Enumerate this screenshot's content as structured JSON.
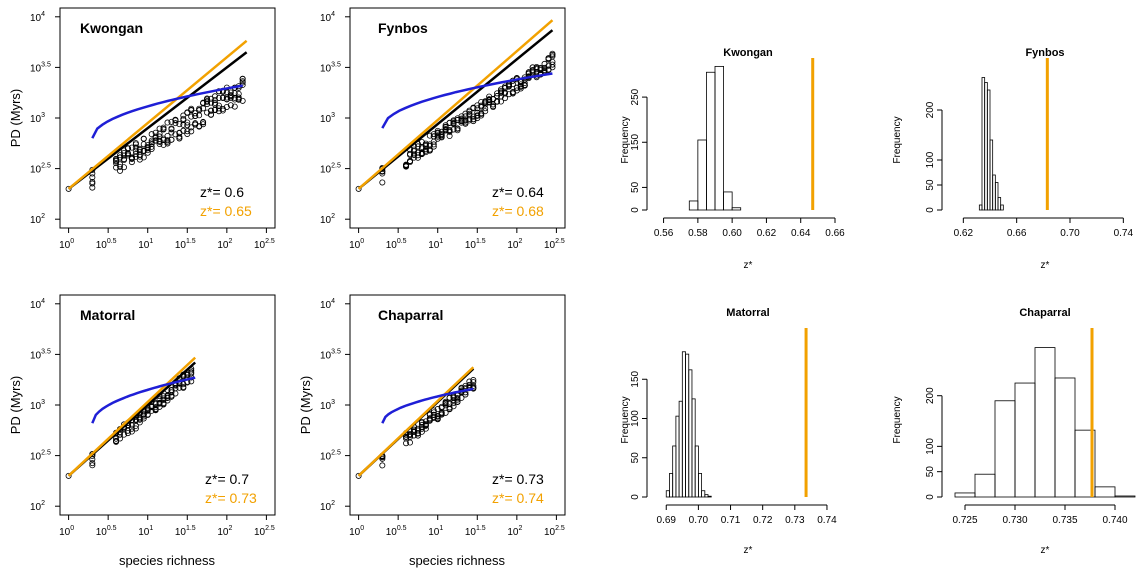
{
  "colors": {
    "black": "#000000",
    "orange": "#f2a100",
    "blue": "#1f1fd6"
  },
  "chart_data": [
    {
      "type": "scatter",
      "title": "Kwongan",
      "ylabel": "PD (Myrs)",
      "xlabel": "",
      "xscale": "log10",
      "yscale": "log10",
      "xlim": [
        0,
        2.5
      ],
      "ylim": [
        2,
        4
      ],
      "xticks": [
        "10^0",
        "10^0.5",
        "10^1",
        "10^1.5",
        "10^2",
        "10^2.5"
      ],
      "yticks": [
        "10^2",
        "10^2.5",
        "10^3",
        "10^3.5",
        "10^4"
      ],
      "annotations": [
        {
          "text": "z*= 0.6",
          "color": "black"
        },
        {
          "text": "z*= 0.65",
          "color": "orange"
        }
      ],
      "points": {
        "x_range": [
          0.0,
          2.2
        ],
        "y_low": [
          2.18,
          3.15
        ],
        "y_high": [
          2.3,
          3.35
        ],
        "spread": 0.17
      },
      "lines": [
        {
          "name": "black",
          "slope": 0.6,
          "intercept": 2.3,
          "x": [
            0.0,
            2.25
          ]
        },
        {
          "name": "orange",
          "slope": 0.65,
          "intercept": 2.3,
          "x": [
            0.0,
            2.25
          ]
        },
        {
          "name": "blue",
          "type": "curve",
          "x": [
            0.3,
            2.2
          ],
          "y": [
            2.8,
            3.32
          ]
        }
      ]
    },
    {
      "type": "scatter",
      "title": "Fynbos",
      "ylabel": "",
      "xlabel": "",
      "xscale": "log10",
      "yscale": "log10",
      "xlim": [
        0,
        2.5
      ],
      "ylim": [
        2,
        4
      ],
      "xticks": [
        "10^0",
        "10^0.5",
        "10^1",
        "10^1.5",
        "10^2",
        "10^2.5"
      ],
      "yticks": [
        "10^2",
        "10^2.5",
        "10^3",
        "10^3.5",
        "10^4"
      ],
      "annotations": [
        {
          "text": "z*= 0.64",
          "color": "black"
        },
        {
          "text": "z*= 0.68",
          "color": "orange"
        }
      ],
      "points": {
        "x_range": [
          0.0,
          2.45
        ],
        "y_low": [
          2.2,
          3.5
        ],
        "y_high": [
          2.3,
          3.58
        ],
        "spread": 0.16
      },
      "lines": [
        {
          "name": "black",
          "slope": 0.64,
          "intercept": 2.3,
          "x": [
            0.0,
            2.45
          ]
        },
        {
          "name": "orange",
          "slope": 0.68,
          "intercept": 2.3,
          "x": [
            0.0,
            2.45
          ]
        },
        {
          "name": "blue",
          "type": "curve",
          "x": [
            0.3,
            2.45
          ],
          "y": [
            2.9,
            3.44
          ]
        }
      ]
    },
    {
      "type": "scatter",
      "title": "Matorral",
      "ylabel": "PD (Myrs)",
      "xlabel": "species richness",
      "xscale": "log10",
      "yscale": "log10",
      "xlim": [
        0,
        2.5
      ],
      "ylim": [
        2,
        4
      ],
      "xticks": [
        "10^0",
        "10^0.5",
        "10^1",
        "10^1.5",
        "10^2",
        "10^2.5"
      ],
      "yticks": [
        "10^2",
        "10^2.5",
        "10^3",
        "10^3.5",
        "10^4"
      ],
      "annotations": [
        {
          "text": "z*= 0.7",
          "color": "black"
        },
        {
          "text": "z*= 0.73",
          "color": "orange"
        }
      ],
      "points": {
        "x_range": [
          0.0,
          1.58
        ],
        "y_low": [
          2.2,
          3.25
        ],
        "y_high": [
          2.3,
          3.33
        ],
        "spread": 0.16
      },
      "lines": [
        {
          "name": "black",
          "slope": 0.7,
          "intercept": 2.3,
          "x": [
            0.0,
            1.6
          ]
        },
        {
          "name": "orange",
          "slope": 0.73,
          "intercept": 2.3,
          "x": [
            0.0,
            1.6
          ]
        },
        {
          "name": "blue",
          "type": "curve",
          "x": [
            0.3,
            1.6
          ],
          "y": [
            2.82,
            3.27
          ]
        }
      ]
    },
    {
      "type": "scatter",
      "title": "Chaparral",
      "ylabel": "PD (Myrs)",
      "xlabel": "species richness",
      "xscale": "log10",
      "yscale": "log10",
      "xlim": [
        0,
        2.5
      ],
      "ylim": [
        2,
        4
      ],
      "xticks": [
        "10^0",
        "10^0.5",
        "10^1",
        "10^1.5",
        "10^2",
        "10^2.5"
      ],
      "yticks": [
        "10^2",
        "10^2.5",
        "10^3",
        "10^3.5",
        "10^4"
      ],
      "annotations": [
        {
          "text": "z*= 0.73",
          "color": "black"
        },
        {
          "text": "z*= 0.74",
          "color": "orange"
        }
      ],
      "points": {
        "x_range": [
          0.0,
          1.45
        ],
        "y_low": [
          2.2,
          3.15
        ],
        "y_high": [
          2.3,
          3.22
        ],
        "spread": 0.13
      },
      "lines": [
        {
          "name": "black",
          "slope": 0.73,
          "intercept": 2.3,
          "x": [
            0.0,
            1.45
          ]
        },
        {
          "name": "orange",
          "slope": 0.74,
          "intercept": 2.3,
          "x": [
            0.0,
            1.45
          ]
        },
        {
          "name": "blue",
          "type": "curve",
          "x": [
            0.3,
            1.45
          ],
          "y": [
            2.82,
            3.16
          ]
        }
      ]
    },
    {
      "type": "bar",
      "title": "Kwongan",
      "xlabel": "z*",
      "ylabel": "Frequency",
      "xlim": [
        0.555,
        0.66
      ],
      "ylim": [
        0,
        310
      ],
      "xticks": [
        0.56,
        0.58,
        0.6,
        0.62,
        0.64,
        0.66
      ],
      "yticks": [
        0,
        50,
        150,
        250
      ],
      "bin_start": 0.575,
      "bin_width": 0.005,
      "values": [
        20,
        155,
        305,
        318,
        40,
        5
      ],
      "observed": 0.647
    },
    {
      "type": "bar",
      "title": "Fynbos",
      "xlabel": "z*",
      "ylabel": "Frequency",
      "xlim": [
        0.61,
        0.745
      ],
      "ylim": [
        0,
        280
      ],
      "xticks": [
        0.62,
        0.66,
        0.7,
        0.74
      ],
      "yticks": [
        0,
        50,
        100,
        200
      ],
      "bin_start": 0.632,
      "bin_width": 0.002,
      "values": [
        10,
        265,
        255,
        240,
        140,
        70,
        55,
        25,
        10
      ],
      "observed": 0.683
    },
    {
      "type": "bar",
      "title": "Matorral",
      "xlabel": "z*",
      "ylabel": "Frequency",
      "xlim": [
        0.6865,
        0.7425
      ],
      "ylim": [
        0,
        200
      ],
      "xticks": [
        0.69,
        0.7,
        0.71,
        0.72,
        0.73,
        0.74
      ],
      "yticks": [
        0,
        50,
        100,
        150
      ],
      "bin_start": 0.69,
      "bin_width": 0.001,
      "values": [
        8,
        30,
        65,
        103,
        122,
        185,
        182,
        162,
        125,
        65,
        30,
        8,
        3,
        1
      ],
      "observed": 0.7335
    },
    {
      "type": "bar",
      "title": "Chaparral",
      "xlabel": "z*",
      "ylabel": "Frequency",
      "xlim": [
        0.7235,
        0.7415
      ],
      "ylim": [
        0,
        310
      ],
      "xticks": [
        0.725,
        0.73,
        0.735,
        0.74
      ],
      "yticks": [
        0,
        50,
        100,
        200
      ],
      "bin_start": 0.724,
      "bin_width": 0.002,
      "values": [
        8,
        45,
        190,
        225,
        295,
        235,
        132,
        20,
        2
      ],
      "observed": 0.7377
    }
  ]
}
